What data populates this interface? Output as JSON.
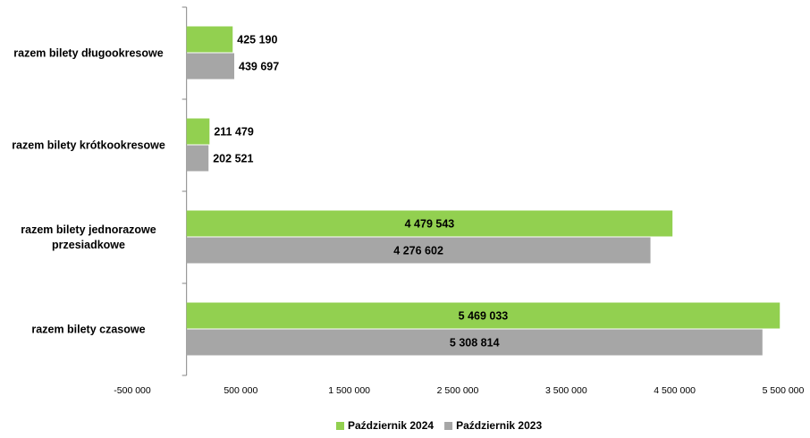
{
  "chart_data": {
    "type": "hbar",
    "categories": [
      "razem bilety długookresowe",
      "razem bilety krótkookresowe",
      "razem bilety jednorazowe przesiadkowe",
      "razem bilety czasowe"
    ],
    "series": [
      {
        "name": "Październik 2024",
        "color": "#92d050",
        "values": [
          425190,
          211479,
          4479543,
          5469033
        ],
        "value_labels": [
          "425 190",
          "211 479",
          "4 479 543",
          "5 469 033"
        ]
      },
      {
        "name": "Październik 2023",
        "color": "#a6a6a6",
        "values": [
          439697,
          202521,
          4276602,
          5308814
        ],
        "value_labels": [
          "439 697",
          "202 521",
          "4 276 602",
          "5 308 814"
        ]
      }
    ],
    "xlim": [
      -500000,
      5500000
    ],
    "xticks": [
      {
        "value": -500000,
        "label": "-500 000"
      },
      {
        "value": 500000,
        "label": "500 000"
      },
      {
        "value": 1500000,
        "label": "1 500 000"
      },
      {
        "value": 2500000,
        "label": "2 500 000"
      },
      {
        "value": 3500000,
        "label": "3 500 000"
      },
      {
        "value": 4500000,
        "label": "4 500 000"
      },
      {
        "value": 5500000,
        "label": "5 500 000"
      }
    ],
    "legend": "bottom"
  }
}
